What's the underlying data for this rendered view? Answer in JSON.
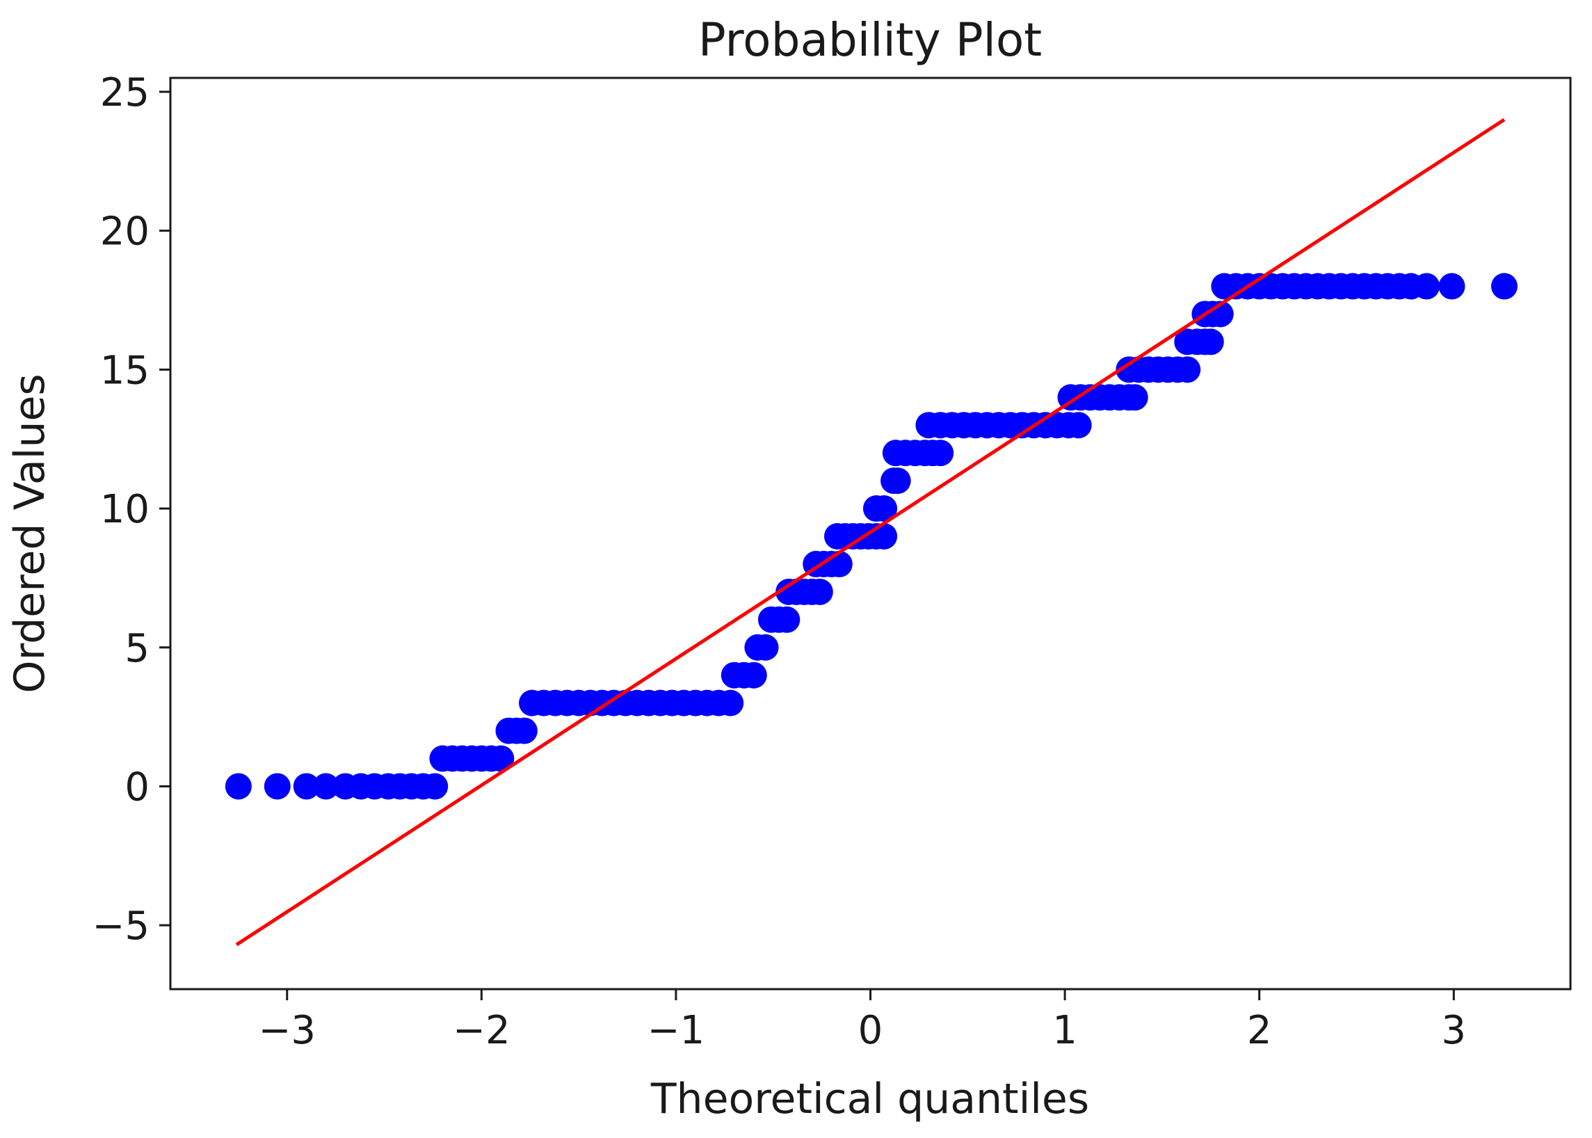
{
  "chart_data": {
    "type": "scatter",
    "title": "Probability Plot",
    "xlabel": "Theoretical quantiles",
    "ylabel": "Ordered Values",
    "xlim": [
      -3.6,
      3.6
    ],
    "ylim": [
      -7.3,
      25.5
    ],
    "xticks": [
      -3,
      -2,
      -1,
      0,
      1,
      2,
      3
    ],
    "xtick_labels": [
      "−3",
      "−2",
      "−1",
      "0",
      "1",
      "2",
      "3"
    ],
    "yticks": [
      -5,
      0,
      5,
      10,
      15,
      20,
      25
    ],
    "ytick_labels": [
      "−5",
      "0",
      "5",
      "10",
      "15",
      "20",
      "25"
    ],
    "grid": false,
    "legend": "none",
    "colors": {
      "points": "#0000ff",
      "fit_line": "#ff0000",
      "axes": "#1a1a1a"
    },
    "series": [
      {
        "kind": "points",
        "runs": [
          {
            "y": 0,
            "x": [
              -3.25,
              -3.05,
              -2.9,
              -2.8,
              -2.7,
              -2.62,
              -2.55,
              -2.48,
              -2.42,
              -2.36,
              -2.3,
              -2.24
            ]
          },
          {
            "y": 1,
            "x": [
              -2.2,
              -2.15,
              -2.1,
              -2.05,
              -2.0,
              -1.95,
              -1.9
            ]
          },
          {
            "y": 2,
            "x": [
              -1.86,
              -1.82,
              -1.78
            ]
          },
          {
            "y": 3,
            "x": [
              -1.74,
              -1.68,
              -1.62,
              -1.56,
              -1.5,
              -1.44,
              -1.38,
              -1.32,
              -1.26,
              -1.2,
              -1.14,
              -1.08,
              -1.02,
              -0.96,
              -0.9,
              -0.84,
              -0.78,
              -0.72
            ]
          },
          {
            "y": 4,
            "x": [
              -0.7,
              -0.65,
              -0.6
            ]
          },
          {
            "y": 5,
            "x": [
              -0.58,
              -0.54
            ]
          },
          {
            "y": 6,
            "x": [
              -0.51,
              -0.47,
              -0.43
            ]
          },
          {
            "y": 7,
            "x": [
              -0.42,
              -0.38,
              -0.34,
              -0.3,
              -0.26
            ]
          },
          {
            "y": 8,
            "x": [
              -0.28,
              -0.24,
              -0.2,
              -0.16
            ]
          },
          {
            "y": 9,
            "x": [
              -0.17,
              -0.13,
              -0.09,
              -0.05,
              -0.01,
              0.03,
              0.07
            ]
          },
          {
            "y": 10,
            "x": [
              0.03,
              0.07
            ]
          },
          {
            "y": 11,
            "x": [
              0.12,
              0.14
            ]
          },
          {
            "y": 12,
            "x": [
              0.13,
              0.18,
              0.23,
              0.28,
              0.32,
              0.36
            ]
          },
          {
            "y": 13,
            "x": [
              0.3,
              0.36,
              0.42,
              0.48,
              0.54,
              0.6,
              0.66,
              0.72,
              0.78,
              0.84,
              0.9,
              0.96,
              1.02,
              1.07
            ]
          },
          {
            "y": 14,
            "x": [
              1.03,
              1.08,
              1.13,
              1.18,
              1.23,
              1.28,
              1.33,
              1.36
            ]
          },
          {
            "y": 15,
            "x": [
              1.33,
              1.38,
              1.43,
              1.48,
              1.53,
              1.58,
              1.63
            ]
          },
          {
            "y": 16,
            "x": [
              1.63,
              1.68,
              1.72,
              1.75
            ]
          },
          {
            "y": 17,
            "x": [
              1.72,
              1.76,
              1.8
            ]
          },
          {
            "y": 18,
            "x": [
              1.82,
              1.88,
              1.94,
              2.0,
              2.06,
              2.12,
              2.18,
              2.24,
              2.3,
              2.36,
              2.42,
              2.48,
              2.54,
              2.6,
              2.66,
              2.72,
              2.78,
              2.86,
              2.99,
              3.26
            ]
          }
        ]
      },
      {
        "kind": "fit_line",
        "x": [
          -3.26,
          3.26
        ],
        "y": [
          -5.7,
          24.0
        ]
      }
    ]
  }
}
